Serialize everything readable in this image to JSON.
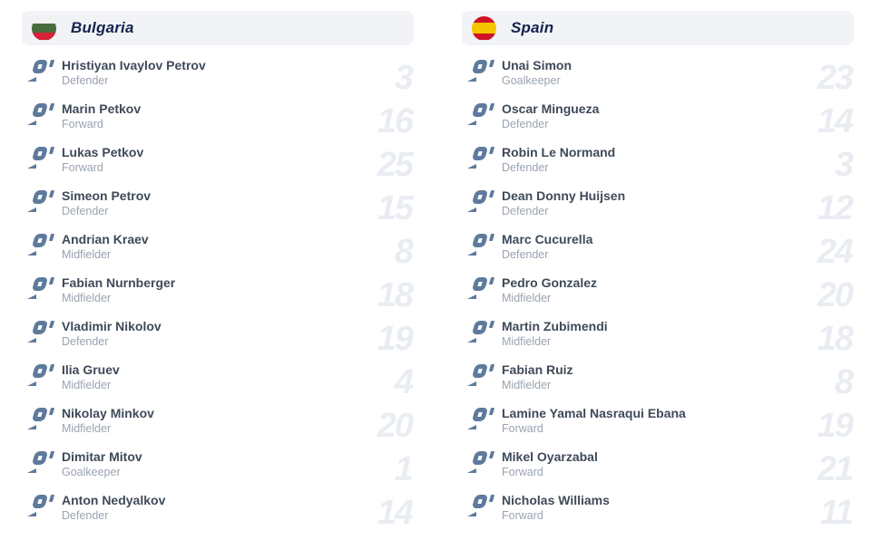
{
  "colors": {
    "page-bg": "#ffffff",
    "header-bg": "#f1f3f6",
    "team-title": "#15234d",
    "player-name": "#3f4a59",
    "player-position": "#9aa3b0",
    "jersey-number": "#e9edf2",
    "icon": "#5e7a9c"
  },
  "teams": [
    {
      "name": "Bulgaria",
      "flag": {
        "stripes": [
          {
            "color": "#f2f2f0",
            "height": 31
          },
          {
            "color": "#4a6b3c",
            "height": 38
          },
          {
            "color": "#d62137",
            "height": 31
          }
        ]
      },
      "players": [
        {
          "name": "Hristiyan Ivaylov Petrov",
          "position": "Defender",
          "number": "3"
        },
        {
          "name": "Marin Petkov",
          "position": "Forward",
          "number": "16"
        },
        {
          "name": "Lukas Petkov",
          "position": "Forward",
          "number": "25"
        },
        {
          "name": "Simeon Petrov",
          "position": "Defender",
          "number": "15"
        },
        {
          "name": "Andrian Kraev",
          "position": "Midfielder",
          "number": "8"
        },
        {
          "name": "Fabian Nurnberger",
          "position": "Midfielder",
          "number": "18"
        },
        {
          "name": "Vladimir Nikolov",
          "position": "Defender",
          "number": "19"
        },
        {
          "name": "Ilia Gruev",
          "position": "Midfielder",
          "number": "4"
        },
        {
          "name": "Nikolay Minkov",
          "position": "Midfielder",
          "number": "20"
        },
        {
          "name": "Dimitar Mitov",
          "position": "Goalkeeper",
          "number": "1"
        },
        {
          "name": "Anton Nedyalkov",
          "position": "Defender",
          "number": "14"
        }
      ]
    },
    {
      "name": "Spain",
      "flag": {
        "stripes": [
          {
            "color": "#cf1126",
            "height": 28
          },
          {
            "color": "#f5c400",
            "height": 44
          },
          {
            "color": "#cf1126",
            "height": 28
          }
        ]
      },
      "players": [
        {
          "name": "Unai Simon",
          "position": "Goalkeeper",
          "number": "23"
        },
        {
          "name": "Oscar Mingueza",
          "position": "Defender",
          "number": "14"
        },
        {
          "name": "Robin Le Normand",
          "position": "Defender",
          "number": "3"
        },
        {
          "name": "Dean Donny Huijsen",
          "position": "Defender",
          "number": "12"
        },
        {
          "name": "Marc Cucurella",
          "position": "Defender",
          "number": "24"
        },
        {
          "name": "Pedro Gonzalez",
          "position": "Midfielder",
          "number": "20"
        },
        {
          "name": "Martin Zubimendi",
          "position": "Midfielder",
          "number": "18"
        },
        {
          "name": "Fabian Ruiz",
          "position": "Midfielder",
          "number": "8"
        },
        {
          "name": "Lamine Yamal Nasraqui Ebana",
          "position": "Forward",
          "number": "19"
        },
        {
          "name": "Mikel Oyarzabal",
          "position": "Forward",
          "number": "21"
        },
        {
          "name": "Nicholas Williams",
          "position": "Forward",
          "number": "11"
        }
      ]
    }
  ]
}
